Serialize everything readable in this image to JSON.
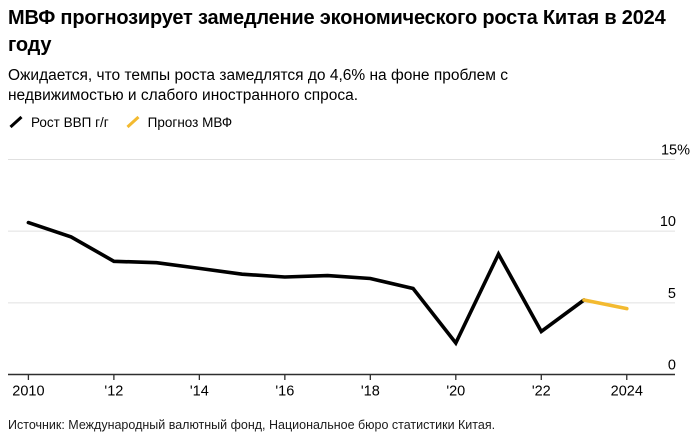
{
  "header": {
    "title": "МВФ прогнозирует замедление экономического роста Китая в 2024 году",
    "subtitle": "Ожидается, что темпы роста замедлятся до 4,6% на фоне проблем с недвижимостью и слабого иностранного спроса."
  },
  "legend": {
    "items": [
      {
        "label": "Рост ВВП г/г",
        "color": "#000000"
      },
      {
        "label": "Прогноз МВФ",
        "color": "#F3BA30"
      }
    ]
  },
  "source": "Источник: Международный валютный фонд, Национальное бюро статистики Китая.",
  "colors": {
    "gdp_line": "#000000",
    "forecast_line": "#F3BA30",
    "gridline": "#e0e0e0",
    "axis": "#2e2e2e",
    "text": "#000000"
  },
  "chart_data": {
    "type": "line",
    "title": "МВФ прогнозирует замедление экономического роста Китая в 2024 году",
    "xlabel": "",
    "ylabel": "",
    "ylim": [
      0,
      15
    ],
    "xlim": [
      2009.5,
      2024.5
    ],
    "grid": true,
    "legend_position": "top",
    "yticks": [
      {
        "value": 15,
        "label": "15%"
      },
      {
        "value": 10,
        "label": "10"
      },
      {
        "value": 5,
        "label": "5"
      },
      {
        "value": 0,
        "label": "0"
      }
    ],
    "xticks": [
      {
        "value": 2010,
        "label": "2010"
      },
      {
        "value": 2012,
        "label": "'12"
      },
      {
        "value": 2014,
        "label": "'14"
      },
      {
        "value": 2016,
        "label": "'16"
      },
      {
        "value": 2018,
        "label": "'18"
      },
      {
        "value": 2020,
        "label": "'20"
      },
      {
        "value": 2022,
        "label": "'22"
      },
      {
        "value": 2024,
        "label": "2024"
      }
    ],
    "series": [
      {
        "name": "Рост ВВП г/г",
        "color": "#000000",
        "x": [
          2010,
          2011,
          2012,
          2013,
          2014,
          2015,
          2016,
          2017,
          2018,
          2019,
          2020,
          2021,
          2022,
          2023
        ],
        "values": [
          10.6,
          9.6,
          7.9,
          7.8,
          7.4,
          7.0,
          6.8,
          6.9,
          6.7,
          6.0,
          2.2,
          8.4,
          3.0,
          5.2
        ]
      },
      {
        "name": "Прогноз МВФ",
        "color": "#F3BA30",
        "x": [
          2023,
          2024
        ],
        "values": [
          5.2,
          4.6
        ]
      }
    ]
  }
}
